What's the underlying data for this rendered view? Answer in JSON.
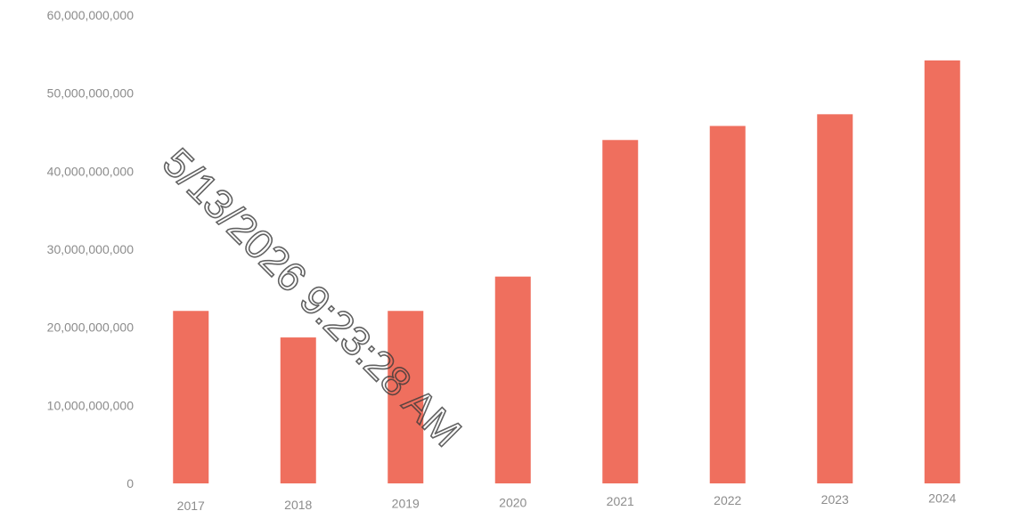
{
  "chart_data": {
    "type": "bar",
    "categories": [
      "2017",
      "2018",
      "2019",
      "2020",
      "2021",
      "2022",
      "2023",
      "2024"
    ],
    "values": [
      22100000000,
      18700000000,
      22100000000,
      26500000000,
      44000000000,
      45800000000,
      47300000000,
      54200000000
    ],
    "title": "",
    "xlabel": "",
    "ylabel": "",
    "ylim": [
      0,
      60000000000
    ],
    "yticks": [
      "0",
      "10,000,000,000",
      "20,000,000,000",
      "30,000,000,000",
      "40,000,000,000",
      "50,000,000,000",
      "60,000,000,000"
    ],
    "grid": false,
    "legend": "none",
    "bar_color": "#ef6f5e"
  },
  "watermark": {
    "text": "5/13/2026 9:23:28 AM"
  }
}
